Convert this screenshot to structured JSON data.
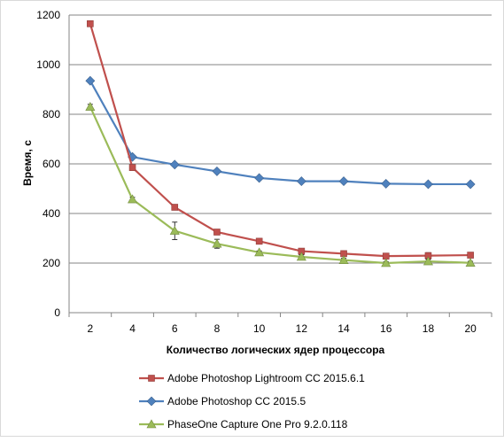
{
  "chart_data": {
    "type": "line",
    "title": "",
    "xlabel": "Количество  логических ядер процессора",
    "ylabel": "Время, с",
    "x": [
      2,
      4,
      6,
      8,
      10,
      12,
      14,
      16,
      18,
      20
    ],
    "xlim": [
      1,
      21
    ],
    "ylim": [
      0,
      1200
    ],
    "yticks": [
      0,
      200,
      400,
      600,
      800,
      1000,
      1200
    ],
    "grid": "horizontal",
    "legend_position": "bottom",
    "series": [
      {
        "name": "Adobe Photoshop Lightroom CC 2015.6.1",
        "color": "#c0504d",
        "marker": "square",
        "values": [
          1165,
          585,
          425,
          325,
          288,
          248,
          238,
          228,
          230,
          232
        ],
        "errors": [
          5,
          8,
          6,
          10,
          6,
          5,
          5,
          6,
          12,
          8
        ]
      },
      {
        "name": "Adobe Photoshop CC 2015.5",
        "color": "#4f81bd",
        "marker": "diamond",
        "values": [
          935,
          628,
          597,
          570,
          543,
          530,
          530,
          520,
          518,
          518
        ],
        "errors": [
          4,
          5,
          5,
          5,
          4,
          4,
          4,
          4,
          4,
          4
        ]
      },
      {
        "name": "PhaseOne Capture One Pro 9.2.0.118",
        "color": "#9bbb59",
        "marker": "triangle",
        "values": [
          830,
          457,
          330,
          278,
          243,
          225,
          212,
          200,
          207,
          201
        ],
        "errors": [
          10,
          8,
          35,
          18,
          6,
          8,
          7,
          5,
          8,
          6
        ]
      }
    ]
  }
}
